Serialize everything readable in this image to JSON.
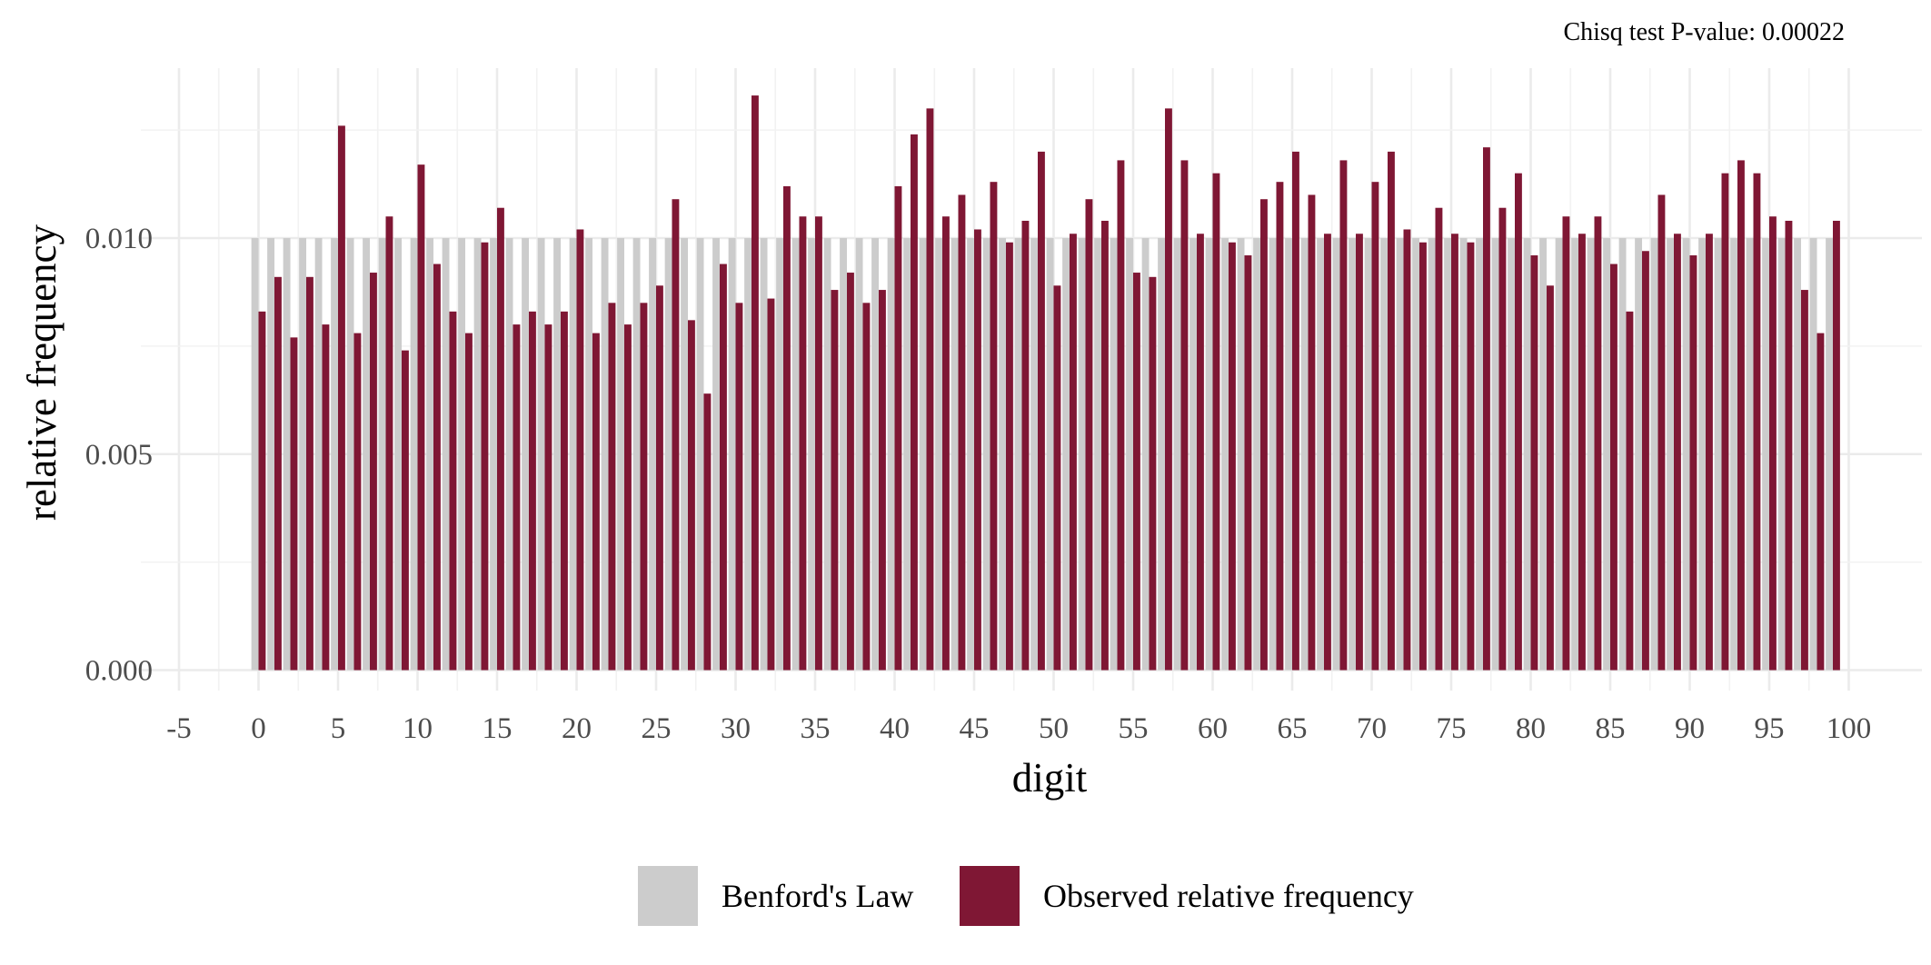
{
  "chart_data": {
    "type": "bar",
    "title": "",
    "subtitle": "Chisq test P-value: 0.00022",
    "xlabel": "digit",
    "ylabel": "relative frequency",
    "xlim": [
      -5,
      100
    ],
    "ylim": [
      0,
      0.013
    ],
    "x_ticks": [
      "-5",
      "0",
      "5",
      "10",
      "15",
      "20",
      "25",
      "30",
      "35",
      "40",
      "45",
      "50",
      "55",
      "60",
      "65",
      "70",
      "75",
      "80",
      "85",
      "90",
      "95",
      "100"
    ],
    "y_ticks": [
      "0.000",
      "0.005",
      "0.010"
    ],
    "grid": true,
    "legend_position": "bottom",
    "colors": {
      "benford": "#cccccc",
      "observed": "#7f1734"
    },
    "x": [
      0,
      1,
      2,
      3,
      4,
      5,
      6,
      7,
      8,
      9,
      10,
      11,
      12,
      13,
      14,
      15,
      16,
      17,
      18,
      19,
      20,
      21,
      22,
      23,
      24,
      25,
      26,
      27,
      28,
      29,
      30,
      31,
      32,
      33,
      34,
      35,
      36,
      37,
      38,
      39,
      40,
      41,
      42,
      43,
      44,
      45,
      46,
      47,
      48,
      49,
      50,
      51,
      52,
      53,
      54,
      55,
      56,
      57,
      58,
      59,
      60,
      61,
      62,
      63,
      64,
      65,
      66,
      67,
      68,
      69,
      70,
      71,
      72,
      73,
      74,
      75,
      76,
      77,
      78,
      79,
      80,
      81,
      82,
      83,
      84,
      85,
      86,
      87,
      88,
      89,
      90,
      91,
      92,
      93,
      94,
      95,
      96,
      97,
      98,
      99
    ],
    "series": [
      {
        "name": "Benford's Law",
        "values": [
          0.01,
          0.01,
          0.01,
          0.01,
          0.01,
          0.01,
          0.01,
          0.01,
          0.01,
          0.01,
          0.01,
          0.01,
          0.01,
          0.01,
          0.01,
          0.01,
          0.01,
          0.01,
          0.01,
          0.01,
          0.01,
          0.01,
          0.01,
          0.01,
          0.01,
          0.01,
          0.01,
          0.01,
          0.01,
          0.01,
          0.01,
          0.01,
          0.01,
          0.01,
          0.01,
          0.01,
          0.01,
          0.01,
          0.01,
          0.01,
          0.01,
          0.01,
          0.01,
          0.01,
          0.01,
          0.01,
          0.01,
          0.01,
          0.01,
          0.01,
          0.01,
          0.01,
          0.01,
          0.01,
          0.01,
          0.01,
          0.01,
          0.01,
          0.01,
          0.01,
          0.01,
          0.01,
          0.01,
          0.01,
          0.01,
          0.01,
          0.01,
          0.01,
          0.01,
          0.01,
          0.01,
          0.01,
          0.01,
          0.01,
          0.01,
          0.01,
          0.01,
          0.01,
          0.01,
          0.01,
          0.01,
          0.01,
          0.01,
          0.01,
          0.01,
          0.01,
          0.01,
          0.01,
          0.01,
          0.01,
          0.01,
          0.01,
          0.01,
          0.01,
          0.01,
          0.01,
          0.01,
          0.01,
          0.01,
          0.01
        ]
      },
      {
        "name": "Observed relative frequency",
        "values": [
          0.0083,
          0.0091,
          0.0077,
          0.0091,
          0.008,
          0.0126,
          0.0078,
          0.0092,
          0.0105,
          0.0074,
          0.0117,
          0.0094,
          0.0083,
          0.0078,
          0.0099,
          0.0107,
          0.008,
          0.0083,
          0.008,
          0.0083,
          0.0102,
          0.0078,
          0.0085,
          0.008,
          0.0085,
          0.0089,
          0.0109,
          0.0081,
          0.0064,
          0.0094,
          0.0085,
          0.0133,
          0.0086,
          0.0112,
          0.0105,
          0.0105,
          0.0088,
          0.0092,
          0.0085,
          0.0088,
          0.0112,
          0.0124,
          0.013,
          0.0105,
          0.011,
          0.0102,
          0.0113,
          0.0099,
          0.0104,
          0.012,
          0.0089,
          0.0101,
          0.0109,
          0.0104,
          0.0118,
          0.0092,
          0.0091,
          0.013,
          0.0118,
          0.0101,
          0.0115,
          0.0099,
          0.0096,
          0.0109,
          0.0113,
          0.012,
          0.011,
          0.0101,
          0.0118,
          0.0101,
          0.0113,
          0.012,
          0.0102,
          0.0099,
          0.0107,
          0.0101,
          0.0099,
          0.0121,
          0.0107,
          0.0115,
          0.0096,
          0.0089,
          0.0105,
          0.0101,
          0.0105,
          0.0094,
          0.0083,
          0.0097,
          0.011,
          0.0101,
          0.0096,
          0.0101,
          0.0115,
          0.0118,
          0.0115,
          0.0105,
          0.0104,
          0.0088,
          0.0078,
          0.0104
        ]
      }
    ]
  }
}
